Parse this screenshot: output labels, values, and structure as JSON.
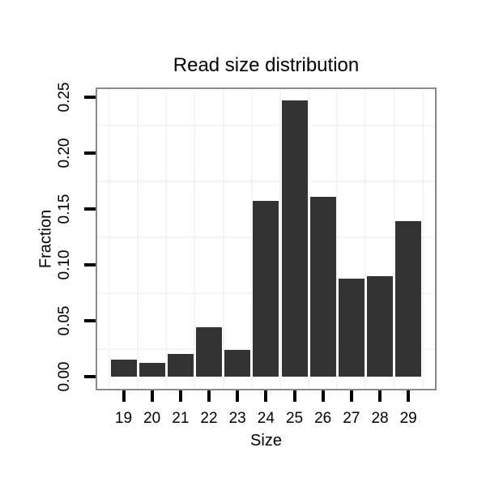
{
  "chart_data": {
    "type": "bar",
    "title": "Read size distribution",
    "xlabel": "Size",
    "ylabel": "Fraction",
    "categories": [
      "19",
      "20",
      "21",
      "22",
      "23",
      "24",
      "25",
      "26",
      "27",
      "28",
      "29"
    ],
    "values": [
      0.015,
      0.012,
      0.02,
      0.044,
      0.024,
      0.157,
      0.247,
      0.161,
      0.088,
      0.09,
      0.139
    ],
    "y_ticks": [
      0,
      0.05,
      0.1,
      0.15,
      0.2,
      0.25
    ],
    "y_tick_labels": [
      "0.00",
      "0.05",
      "0.10",
      "0.15",
      "0.20",
      "0.25"
    ],
    "ylim": [
      0,
      0.26
    ],
    "legend": "none",
    "grid": "faint gridlines offset midway between axis ticks (horizontal at 0.025 steps, vertical at bar boundaries)",
    "colors": {
      "bar": "#333333",
      "grid": "#f5f5f5",
      "panel_border": "#8a8a8a",
      "tick": "#000000",
      "text": "#000000",
      "background": "#ffffff"
    }
  }
}
